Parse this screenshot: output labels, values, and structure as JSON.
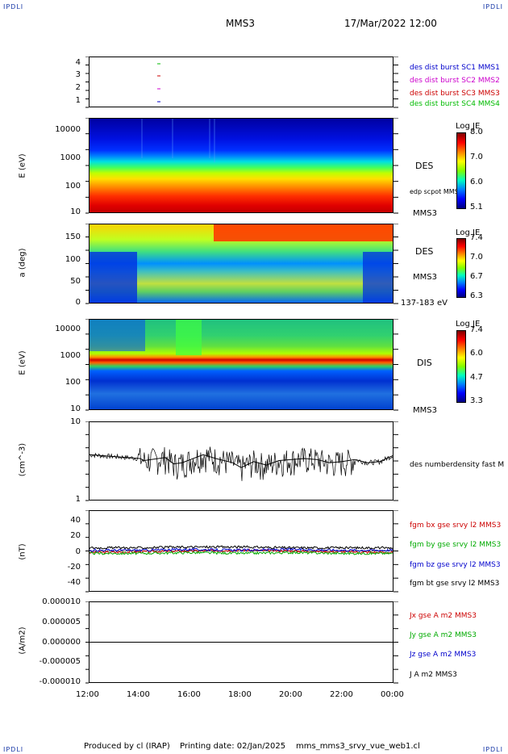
{
  "corners": {
    "tl": "IPDLI",
    "tr": "IPDLI",
    "bl": "IPDLI",
    "br": "IPDLI"
  },
  "header": {
    "spacecraft": "MMS3",
    "datetime": "17/Mar/2022 12:00"
  },
  "footer": {
    "producer": "Produced by cl (IRAP)",
    "printing_date": "Printing date: 02/Jan/2025",
    "script": "mms_mms3_srvy_vue_web1.cl"
  },
  "x_axis": {
    "ticks": [
      "12:00",
      "14:00",
      "16:00",
      "18:00",
      "20:00",
      "22:00",
      "00:00"
    ]
  },
  "panels": {
    "p1": {
      "yticks": [
        "4",
        "3",
        "2",
        "1"
      ],
      "legend": [
        {
          "text": "des dist burst SC1 MMS1",
          "color": "#0000cc"
        },
        {
          "text": "des dist burst SC2 MMS2",
          "color": "#cc00cc"
        },
        {
          "text": "des dist burst SC3 MMS3",
          "color": "#cc0000"
        },
        {
          "text": "des dist burst SC4 MMS4",
          "color": "#00bb00"
        }
      ]
    },
    "p2": {
      "ylabel": "E (eV)",
      "yticks": [
        "10000",
        "1000",
        "100",
        "10"
      ],
      "inst": "DES",
      "overlay": "edp scpot MMS3",
      "sc": "MMS3",
      "cbar": {
        "title": "Log JE",
        "ticks": [
          "8.0",
          "7.0",
          "6.0",
          "5.1"
        ]
      }
    },
    "p3": {
      "ylabel": "a (deg)",
      "yticks": [
        "150",
        "100",
        "50",
        "0"
      ],
      "inst": "DES",
      "sc": "MMS3",
      "erange": "137-183 eV",
      "cbar": {
        "title": "Log JE",
        "ticks": [
          "7.4",
          "7.0",
          "6.7",
          "6.3"
        ]
      }
    },
    "p4": {
      "ylabel": "E (eV)",
      "yticks": [
        "10000",
        "1000",
        "100",
        "10"
      ],
      "inst": "DIS",
      "sc": "MMS3",
      "cbar": {
        "title": "Log JE",
        "ticks": [
          "7.4",
          "6.0",
          "4.7",
          "3.3"
        ]
      }
    },
    "p5": {
      "ylabel": "(cm^-3)",
      "yticks": [
        "10",
        "1"
      ],
      "legend": "des numberdensity fast M"
    },
    "p6": {
      "ylabel": "(nT)",
      "yticks": [
        "40",
        "20",
        "0",
        "-20",
        "-40"
      ],
      "legend": [
        {
          "text": "fgm bx gse srvy l2 MMS3",
          "color": "#cc0000"
        },
        {
          "text": "fgm by gse srvy l2 MMS3",
          "color": "#00aa00"
        },
        {
          "text": "fgm bz gse srvy l2 MMS3",
          "color": "#0000cc"
        },
        {
          "text": "fgm bt gse srvy l2 MMS3",
          "color": "#000000"
        }
      ]
    },
    "p7": {
      "ylabel": "(A/m2)",
      "yticks": [
        "0.000010",
        "0.000005",
        "0.000000",
        "-0.000005",
        "-0.000010"
      ],
      "legend": [
        {
          "text": "Jx gse A m2 MMS3",
          "color": "#cc0000"
        },
        {
          "text": "Jy gse A m2 MMS3",
          "color": "#00aa00"
        },
        {
          "text": "Jz gse A m2 MMS3",
          "color": "#0000cc"
        },
        {
          "text": "J A m2 MMS3",
          "color": "#000000"
        }
      ]
    }
  },
  "chart_data": [
    {
      "type": "scatter",
      "title": "",
      "xlabel": "",
      "ylabel": "",
      "ylim": [
        0.5,
        4.5
      ],
      "series": [
        {
          "name": "des dist burst SC1 MMS1",
          "x": [
            "14:45"
          ],
          "y": [
            1
          ]
        },
        {
          "name": "des dist burst SC2 MMS2",
          "x": [
            "14:45"
          ],
          "y": [
            2
          ]
        },
        {
          "name": "des dist burst SC3 MMS3",
          "x": [
            "14:45"
          ],
          "y": [
            3
          ]
        },
        {
          "name": "des dist burst SC4 MMS4",
          "x": [
            "14:45"
          ],
          "y": [
            4
          ]
        }
      ]
    },
    {
      "type": "heatmap",
      "xlabel": "",
      "ylabel": "E (eV)",
      "ylim": [
        10,
        30000
      ],
      "log_y": true,
      "zlabel": "Log JE",
      "zlim": [
        5.1,
        8.2
      ]
    },
    {
      "type": "heatmap",
      "xlabel": "",
      "ylabel": "a (deg)",
      "ylim": [
        0,
        180
      ],
      "zlabel": "Log JE",
      "zlim": [
        6.3,
        7.5
      ]
    },
    {
      "type": "heatmap",
      "xlabel": "",
      "ylabel": "E (eV)",
      "ylim": [
        10,
        30000
      ],
      "log_y": true,
      "zlabel": "Log JE",
      "zlim": [
        3.3,
        7.6
      ]
    },
    {
      "type": "line",
      "ylabel": "(cm^-3)",
      "ylim": [
        1,
        10
      ],
      "log_y": true,
      "series": [
        {
          "name": "des numberdensity fast M",
          "x": [
            "12:00",
            "13:00",
            "14:00",
            "14:10",
            "15:00",
            "15:20",
            "15:40",
            "16:00",
            "16:30",
            "17:00",
            "17:40",
            "18:00",
            "18:30",
            "19:00",
            "19:30",
            "20:00",
            "20:30",
            "21:00",
            "21:30",
            "22:00",
            "22:30",
            "23:00",
            "23:30",
            "00:00"
          ],
          "y": [
            3.8,
            3.6,
            3.4,
            3.2,
            3.5,
            2.9,
            3.0,
            3.3,
            3.8,
            3.4,
            3.0,
            2.6,
            3.1,
            2.8,
            3.2,
            3.3,
            3.4,
            3.3,
            3.0,
            3.1,
            3.3,
            3.0,
            3.1,
            3.7
          ]
        }
      ]
    },
    {
      "type": "line",
      "ylabel": "(nT)",
      "ylim": [
        -50,
        50
      ],
      "series": [
        {
          "name": "fgm bx gse srvy l2 MMS3",
          "x": [
            "12:00",
            "14:00",
            "16:00",
            "18:00",
            "20:00",
            "22:00",
            "00:00"
          ],
          "y": [
            -2,
            -1,
            0,
            1,
            0,
            -1,
            -2
          ]
        },
        {
          "name": "fgm by gse srvy l2 MMS3",
          "x": [
            "12:00",
            "14:00",
            "16:00",
            "18:00",
            "20:00",
            "22:00",
            "00:00"
          ],
          "y": [
            -3,
            -3,
            -2,
            -3,
            -2,
            -3,
            -3
          ]
        },
        {
          "name": "fgm bz gse srvy l2 MMS3",
          "x": [
            "12:00",
            "14:00",
            "16:00",
            "18:00",
            "20:00",
            "22:00",
            "00:00"
          ],
          "y": [
            1,
            1,
            2,
            1,
            2,
            1,
            1
          ]
        },
        {
          "name": "fgm bt gse srvy l2 MMS3",
          "x": [
            "12:00",
            "14:00",
            "16:00",
            "18:00",
            "20:00",
            "22:00",
            "00:00"
          ],
          "y": [
            4,
            4,
            5,
            5,
            4,
            4,
            4
          ]
        }
      ]
    },
    {
      "type": "line",
      "ylabel": "(A/m2)",
      "ylim": [
        -1e-05,
        1e-05
      ],
      "series": [
        {
          "name": "J A m2 MMS3",
          "x": [
            "12:00",
            "18:00",
            "00:00"
          ],
          "y": [
            0,
            0,
            0
          ]
        }
      ]
    }
  ]
}
